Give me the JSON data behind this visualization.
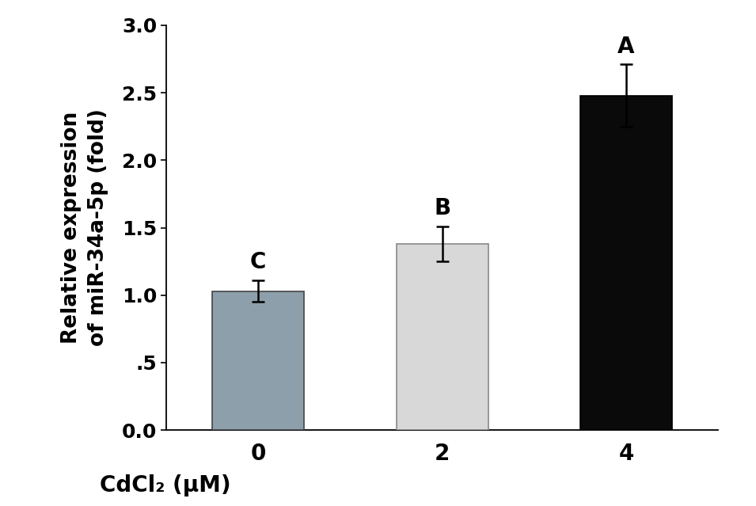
{
  "categories": [
    "0",
    "2",
    "4"
  ],
  "values": [
    1.03,
    1.38,
    2.48
  ],
  "errors": [
    0.08,
    0.13,
    0.23
  ],
  "bar_colors": [
    "#8c9faa",
    "#d8d8d8",
    "#0a0a0a"
  ],
  "bar_edgecolors": [
    "#444444",
    "#888888",
    "#000000"
  ],
  "sig_labels": [
    "C",
    "B",
    "A"
  ],
  "ylabel_line1": "Relative expression",
  "ylabel_line2": "of miR-34a-5p (fold)",
  "xlabel": "CdCl₂ (μM)",
  "ylim": [
    0.0,
    3.0
  ],
  "yticks": [
    0.0,
    0.5,
    1.0,
    1.5,
    2.0,
    2.5,
    3.0
  ],
  "ytick_labels": [
    "0.0",
    ".5",
    "1.0",
    "1.5",
    "2.0",
    "2.5",
    "3.0"
  ],
  "bar_width": 0.5,
  "background_color": "#ffffff",
  "label_fontsize": 19,
  "tick_fontsize": 18,
  "sig_fontsize": 20,
  "xlabel_fontsize": 20
}
